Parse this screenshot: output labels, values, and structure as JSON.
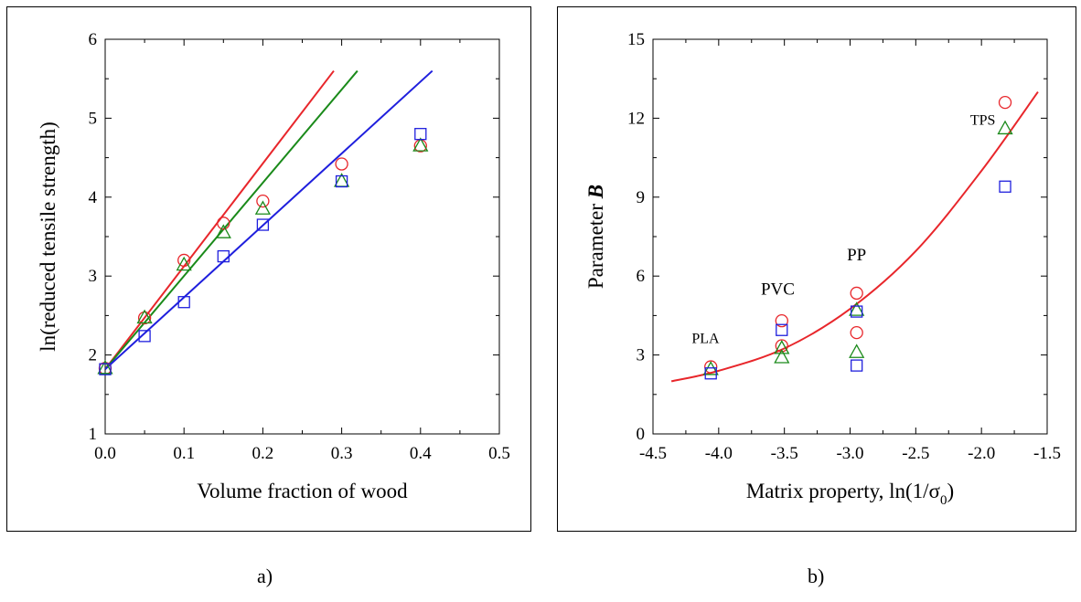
{
  "chart_data": [
    {
      "panel": "a",
      "type": "scatter",
      "xlabel": "Volume fraction of wood",
      "ylabel": "ln(reduced tensile strength)",
      "xlim": [
        0.0,
        0.5
      ],
      "ylim": [
        1,
        6
      ],
      "xticks": [
        "0.0",
        "0.1",
        "0.2",
        "0.3",
        "0.4",
        "0.5"
      ],
      "yticks": [
        "1",
        "2",
        "3",
        "4",
        "5",
        "6"
      ],
      "grid": false,
      "series": [
        {
          "marker": "circle",
          "color": "#e8262b",
          "x": [
            0.0,
            0.05,
            0.1,
            0.15,
            0.2,
            0.3,
            0.4
          ],
          "y": [
            1.83,
            2.47,
            3.2,
            3.67,
            3.95,
            4.42,
            4.65
          ]
        },
        {
          "marker": "triangle",
          "color": "#1a8a1a",
          "x": [
            0.0,
            0.05,
            0.1,
            0.15,
            0.2,
            0.3,
            0.4
          ],
          "y": [
            1.83,
            2.47,
            3.14,
            3.55,
            3.85,
            4.2,
            4.65
          ]
        },
        {
          "marker": "square",
          "color": "#1f1fdd",
          "x": [
            0.0,
            0.05,
            0.1,
            0.15,
            0.2,
            0.3,
            0.4
          ],
          "y": [
            1.82,
            2.24,
            2.67,
            3.25,
            3.65,
            4.2,
            4.8
          ]
        }
      ],
      "lines": [
        {
          "color": "#e8262b",
          "x": [
            0.0,
            0.29
          ],
          "y": [
            1.82,
            5.6
          ]
        },
        {
          "color": "#1a8a1a",
          "x": [
            0.0,
            0.32
          ],
          "y": [
            1.82,
            5.6
          ]
        },
        {
          "color": "#1f1fdd",
          "x": [
            0.0,
            0.415
          ],
          "y": [
            1.82,
            5.6
          ]
        }
      ]
    },
    {
      "panel": "b",
      "type": "scatter",
      "xlabel": "Matrix property, ln(1/σ0)",
      "xlabel_parts": {
        "main": "Matrix property, ln(1/σ",
        "sub": "0",
        "close": ")"
      },
      "ylabel": "Parameter B",
      "ylabel_parts": {
        "main": "Parameter ",
        "italic": "B"
      },
      "xlim": [
        -4.5,
        -1.5
      ],
      "ylim": [
        0,
        15
      ],
      "xticks": [
        "-4.5",
        "-4.0",
        "-3.5",
        "-3.0",
        "-2.5",
        "-2.0",
        "-1.5"
      ],
      "yticks": [
        "0",
        "3",
        "6",
        "9",
        "12",
        "15"
      ],
      "grid": false,
      "series": [
        {
          "marker": "circle",
          "color": "#e8262b",
          "x": [
            -4.06,
            -3.52,
            -3.52,
            -2.95,
            -2.95,
            -1.82
          ],
          "y": [
            2.55,
            4.3,
            3.35,
            5.35,
            3.85,
            12.6
          ]
        },
        {
          "marker": "triangle",
          "color": "#1a8a1a",
          "x": [
            -4.06,
            -3.52,
            -3.52,
            -2.95,
            -2.95,
            -1.82
          ],
          "y": [
            2.45,
            3.25,
            2.9,
            4.7,
            3.1,
            11.6
          ]
        },
        {
          "marker": "square",
          "color": "#1f1fdd",
          "x": [
            -4.06,
            -3.52,
            -2.95,
            -2.95,
            -1.82
          ],
          "y": [
            2.3,
            3.95,
            4.65,
            2.6,
            9.4
          ]
        }
      ],
      "curve": {
        "color": "#e8262b",
        "x": [
          -4.36,
          -4.0,
          -3.5,
          -3.0,
          -2.5,
          -2.0,
          -1.57
        ],
        "y": [
          2.0,
          2.4,
          3.25,
          4.75,
          6.95,
          10.0,
          13.0
        ]
      },
      "annotations": [
        {
          "text": "PLA",
          "x": -4.1,
          "y": 3.45
        },
        {
          "text": "PVC",
          "x": -3.55,
          "y": 5.3
        },
        {
          "text": "PP",
          "x": -2.95,
          "y": 6.6
        },
        {
          "text": "TPS",
          "x": -1.99,
          "y": 11.75
        }
      ]
    }
  ],
  "captions": {
    "a": "a)",
    "b": "b)"
  }
}
